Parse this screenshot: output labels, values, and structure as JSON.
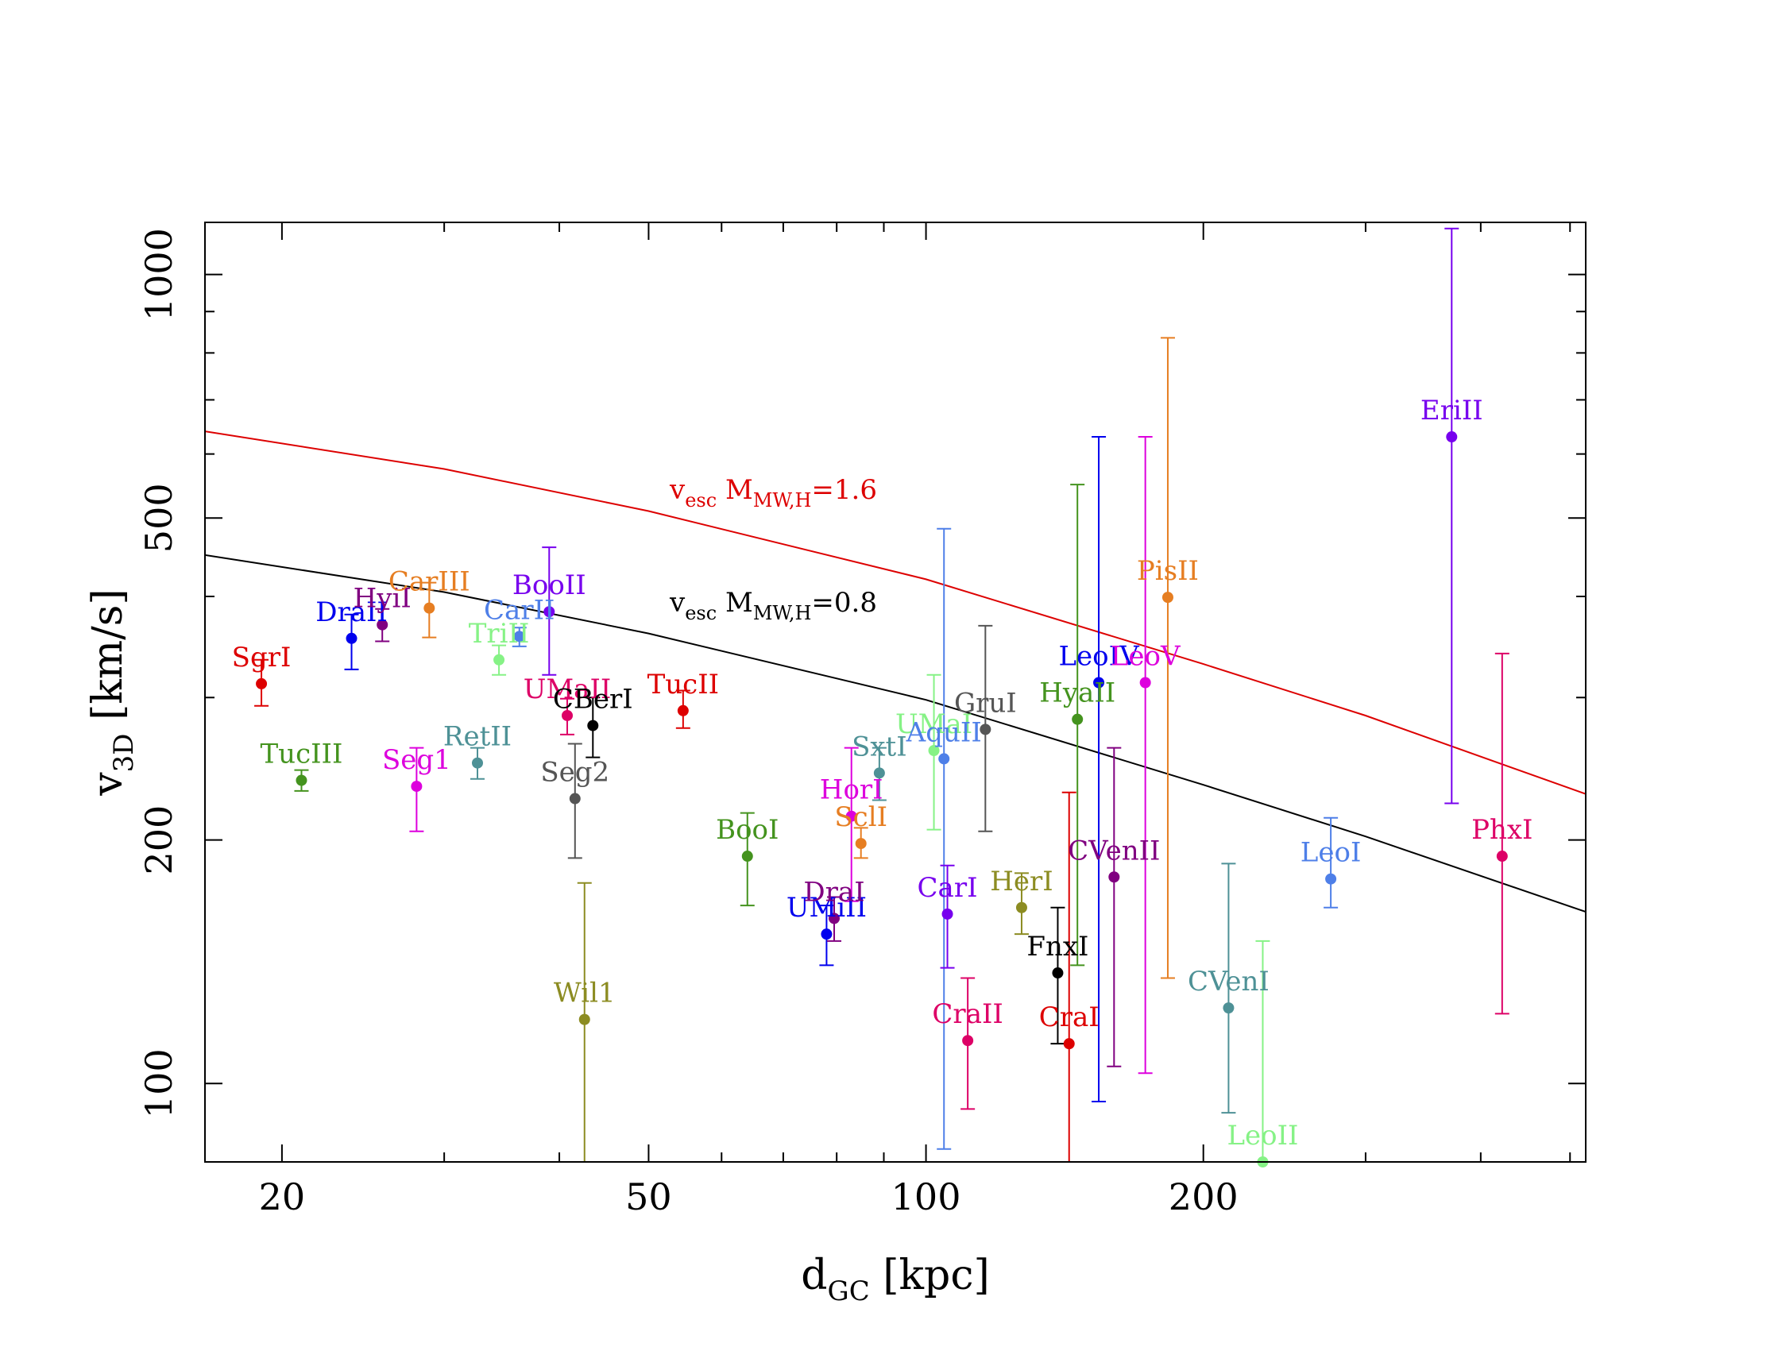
{
  "chart_data": {
    "type": "scatter",
    "title": "",
    "xlabel": {
      "main": "d",
      "sub": "GC",
      "unit": " [kpc]"
    },
    "ylabel": {
      "main": "v",
      "sub": "3D",
      "unit": " [km/s]"
    },
    "xscale": "log",
    "yscale": "log",
    "xlim": [
      16.5,
      520
    ],
    "ylim": [
      80,
      1160
    ],
    "x_ticks": [
      {
        "v": 20,
        "label": "20"
      },
      {
        "v": 30,
        "label": ""
      },
      {
        "v": 40,
        "label": ""
      },
      {
        "v": 50,
        "label": "50"
      },
      {
        "v": 60,
        "label": ""
      },
      {
        "v": 70,
        "label": ""
      },
      {
        "v": 80,
        "label": ""
      },
      {
        "v": 90,
        "label": ""
      },
      {
        "v": 100,
        "label": "100"
      },
      {
        "v": 200,
        "label": "200"
      },
      {
        "v": 300,
        "label": ""
      },
      {
        "v": 400,
        "label": ""
      },
      {
        "v": 500,
        "label": ""
      }
    ],
    "y_ticks": [
      {
        "v": 100,
        "label": "100"
      },
      {
        "v": 200,
        "label": "200"
      },
      {
        "v": 300,
        "label": ""
      },
      {
        "v": 400,
        "label": ""
      },
      {
        "v": 500,
        "label": "500"
      },
      {
        "v": 600,
        "label": ""
      },
      {
        "v": 700,
        "label": ""
      },
      {
        "v": 800,
        "label": ""
      },
      {
        "v": 900,
        "label": ""
      },
      {
        "v": 1000,
        "label": "1000"
      }
    ],
    "grid": false,
    "curves": [
      {
        "label_main": "v",
        "label_sub": "esc",
        "label_mass": "  M",
        "label_mass_sub": "MW,H",
        "label_value": "=1.6",
        "color": "#dd0000",
        "x": [
          16.5,
          30,
          50,
          100,
          200,
          300,
          520
        ],
        "y": [
          640,
          575,
          510,
          420,
          330,
          285,
          228
        ]
      },
      {
        "label_main": "v",
        "label_sub": "esc",
        "label_mass": "  M",
        "label_mass_sub": "MW,H",
        "label_value": "=0.8",
        "color": "#000000",
        "x": [
          16.5,
          30,
          50,
          100,
          200,
          300,
          520
        ],
        "y": [
          450,
          405,
          360,
          298,
          234,
          202,
          163
        ]
      }
    ],
    "points": [
      {
        "name": "SgrI",
        "x": 19,
        "y": 312,
        "lo": 293,
        "hi": 334,
        "color": "#dd0000"
      },
      {
        "name": "TucIII",
        "x": 21,
        "y": 237,
        "lo": 230,
        "hi": 244,
        "color": "#44931e"
      },
      {
        "name": "DraII",
        "x": 23.8,
        "y": 355,
        "lo": 325,
        "hi": 380,
        "color": "#0000ee"
      },
      {
        "name": "HyiI",
        "x": 25.7,
        "y": 369,
        "lo": 352,
        "hi": 386,
        "color": "#800080"
      },
      {
        "name": "Seg1",
        "x": 28,
        "y": 233,
        "lo": 205,
        "hi": 260,
        "color": "#dd00dd"
      },
      {
        "name": "CarIII",
        "x": 28.9,
        "y": 387,
        "lo": 356,
        "hi": 416,
        "color": "#e67e22"
      },
      {
        "name": "RetII",
        "x": 32.6,
        "y": 249,
        "lo": 238,
        "hi": 260,
        "color": "#4e9196"
      },
      {
        "name": "TriII",
        "x": 34.4,
        "y": 334,
        "lo": 320,
        "hi": 348,
        "color": "#86f286"
      },
      {
        "name": "CarII",
        "x": 36.2,
        "y": 357,
        "lo": 347,
        "hi": 366,
        "color": "#4e7fe8"
      },
      {
        "name": "BooII",
        "x": 39,
        "y": 383,
        "lo": 320,
        "hi": 460,
        "color": "#7700ee"
      },
      {
        "name": "UMaII",
        "x": 40.8,
        "y": 285,
        "lo": 270,
        "hi": 299,
        "color": "#dd0066"
      },
      {
        "name": "Seg2",
        "x": 41.6,
        "y": 225,
        "lo": 190,
        "hi": 263,
        "color": "#555555"
      },
      {
        "name": "CBerI",
        "x": 43.5,
        "y": 277,
        "lo": 253,
        "hi": 300,
        "color": "#000000"
      },
      {
        "name": "Wil1",
        "x": 42.6,
        "y": 120,
        "lo": 80,
        "hi": 177,
        "color": "#8c8c22"
      },
      {
        "name": "TucII",
        "x": 54.5,
        "y": 289,
        "lo": 275,
        "hi": 306,
        "color": "#dd0000"
      },
      {
        "name": "BooI",
        "x": 64,
        "y": 191,
        "lo": 166,
        "hi": 216,
        "color": "#44931e"
      },
      {
        "name": "UMiII",
        "x": 78,
        "y": 153,
        "lo": 140,
        "hi": 166,
        "color": "#0000ee"
      },
      {
        "name": "DraI",
        "x": 79.5,
        "y": 160,
        "lo": 150,
        "hi": 170,
        "color": "#800080"
      },
      {
        "name": "HorI",
        "x": 83,
        "y": 214,
        "lo": 168,
        "hi": 260,
        "color": "#dd00dd"
      },
      {
        "name": "SclI",
        "x": 85,
        "y": 198,
        "lo": 190,
        "hi": 207,
        "color": "#e67e22"
      },
      {
        "name": "SxtI",
        "x": 89,
        "y": 242,
        "lo": 224,
        "hi": 260,
        "color": "#4e9196"
      },
      {
        "name": "UMaI",
        "x": 102,
        "y": 258,
        "lo": 206,
        "hi": 320,
        "color": "#86f286"
      },
      {
        "name": "AquII",
        "x": 104.6,
        "y": 252,
        "lo": 83,
        "hi": 485,
        "color": "#4e7fe8"
      },
      {
        "name": "CarI",
        "x": 105.5,
        "y": 162,
        "lo": 139,
        "hi": 186,
        "color": "#7700ee"
      },
      {
        "name": "CraII",
        "x": 111,
        "y": 113,
        "lo": 93,
        "hi": 135,
        "color": "#dd0066"
      },
      {
        "name": "GruI",
        "x": 116,
        "y": 274,
        "lo": 205,
        "hi": 368,
        "color": "#555555"
      },
      {
        "name": "HerI",
        "x": 127,
        "y": 165,
        "lo": 153,
        "hi": 182,
        "color": "#8c8c22"
      },
      {
        "name": "FnxI",
        "x": 139,
        "y": 137,
        "lo": 112,
        "hi": 165,
        "color": "#000000"
      },
      {
        "name": "CraI",
        "x": 143,
        "y": 112,
        "lo": 0,
        "hi": 229,
        "color": "#dd0000"
      },
      {
        "name": "HyaII",
        "x": 146,
        "y": 282,
        "lo": 140,
        "hi": 550,
        "color": "#44931e"
      },
      {
        "name": "LeoIV",
        "x": 154,
        "y": 313,
        "lo": 95,
        "hi": 630,
        "color": "#0000ee"
      },
      {
        "name": "CVenII",
        "x": 160,
        "y": 180,
        "lo": 105,
        "hi": 260,
        "color": "#800080"
      },
      {
        "name": "LeoV",
        "x": 173,
        "y": 313,
        "lo": 103,
        "hi": 630,
        "color": "#dd00dd"
      },
      {
        "name": "PisII",
        "x": 183,
        "y": 399,
        "lo": 135,
        "hi": 835,
        "color": "#e67e22"
      },
      {
        "name": "CVenI",
        "x": 213,
        "y": 124,
        "lo": 92,
        "hi": 187,
        "color": "#4e9196"
      },
      {
        "name": "LeoII",
        "x": 232,
        "y": 80,
        "lo": 0,
        "hi": 150,
        "color": "#86f286"
      },
      {
        "name": "LeoI",
        "x": 275,
        "y": 179,
        "lo": 165,
        "hi": 213,
        "color": "#4e7fe8"
      },
      {
        "name": "EriII",
        "x": 372,
        "y": 630,
        "lo": 222,
        "hi": 1140,
        "color": "#7700ee"
      },
      {
        "name": "PhxI",
        "x": 422,
        "y": 191,
        "lo": 122,
        "hi": 340,
        "color": "#dd0066"
      }
    ]
  }
}
